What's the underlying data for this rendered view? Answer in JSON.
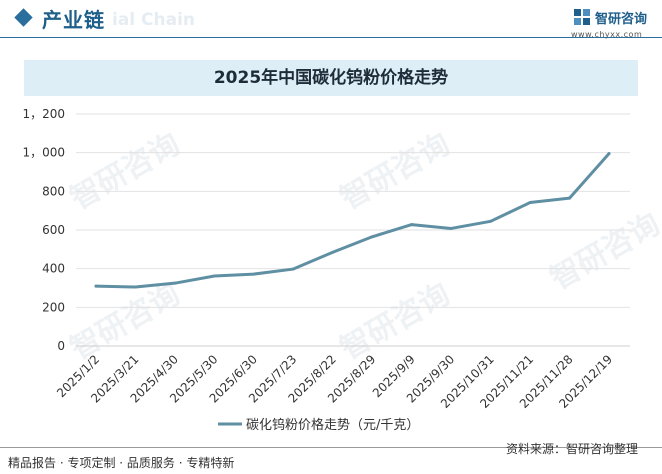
{
  "header": {
    "section_title": "产业链",
    "watermark": "ial Chain",
    "brand_name": "智研咨询",
    "brand_url": "www.chyxx.com"
  },
  "chart_data": {
    "type": "line",
    "title": "2025年中国碳化钨粉价格走势",
    "categories": [
      "2025/1/2",
      "2025/3/21",
      "2025/4/30",
      "2025/5/30",
      "2025/6/30",
      "2025/7/23",
      "2025/8/22",
      "2025/8/29",
      "2025/9/9",
      "2025/9/30",
      "2025/10/31",
      "2025/11/21",
      "2025/11/28",
      "2025/12/19"
    ],
    "series": [
      {
        "name": "碳化钨粉价格走势（元/千克）",
        "values": [
          310,
          305,
          325,
          362,
          372,
          398,
          485,
          565,
          628,
          608,
          645,
          742,
          765,
          995
        ],
        "color": "#5f8fa3"
      }
    ],
    "yticks": [
      "0",
      "200",
      "400",
      "600",
      "800",
      "1，000",
      "1，200"
    ],
    "ylim": [
      0,
      1200
    ],
    "grid": true,
    "legend": "bottom"
  },
  "watermark_text": "智研咨询",
  "footer": {
    "left": "精品报告 · 专项定制 · 品质服务 · 专精特新",
    "right": "资料来源：智研咨询整理"
  }
}
